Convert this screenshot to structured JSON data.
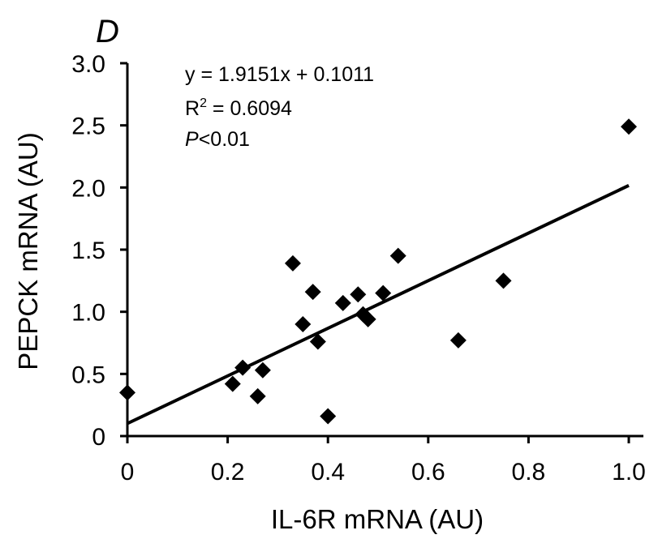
{
  "chart_data": {
    "type": "scatter",
    "panel_label": "D",
    "xlabel": "IL-6R mRNA (AU)",
    "ylabel": "PEPCK mRNA (AU)",
    "xlim": [
      0,
      1.0
    ],
    "ylim": [
      0,
      3.0
    ],
    "x_ticks": [
      0,
      0.2,
      0.4,
      0.6,
      0.8,
      1.0
    ],
    "x_tick_labels": [
      "0",
      "0.2",
      "0.4",
      "0.6",
      "0.8",
      "1.0"
    ],
    "y_ticks": [
      0,
      0.5,
      1.0,
      1.5,
      2.0,
      2.5,
      3.0
    ],
    "y_tick_labels": [
      "0",
      "0.5",
      "1.0",
      "1.5",
      "2.0",
      "2.5",
      "3.0"
    ],
    "grid": false,
    "marker": "diamond",
    "marker_color": "#000000",
    "points": [
      {
        "x": 0.0,
        "y": 0.35
      },
      {
        "x": 0.21,
        "y": 0.42
      },
      {
        "x": 0.23,
        "y": 0.55
      },
      {
        "x": 0.26,
        "y": 0.32
      },
      {
        "x": 0.27,
        "y": 0.53
      },
      {
        "x": 0.33,
        "y": 1.39
      },
      {
        "x": 0.35,
        "y": 0.9
      },
      {
        "x": 0.37,
        "y": 1.16
      },
      {
        "x": 0.38,
        "y": 0.76
      },
      {
        "x": 0.4,
        "y": 0.16
      },
      {
        "x": 0.43,
        "y": 1.07
      },
      {
        "x": 0.46,
        "y": 1.14
      },
      {
        "x": 0.47,
        "y": 0.98
      },
      {
        "x": 0.48,
        "y": 0.94
      },
      {
        "x": 0.51,
        "y": 1.15
      },
      {
        "x": 0.54,
        "y": 1.45
      },
      {
        "x": 0.66,
        "y": 0.77
      },
      {
        "x": 0.75,
        "y": 1.25
      },
      {
        "x": 1.0,
        "y": 2.49
      }
    ],
    "trendline": {
      "slope": 1.9151,
      "intercept": 0.1011,
      "x_range": [
        0,
        1.0
      ]
    },
    "annotations": {
      "equation": "y = 1.9151x + 0.1011",
      "r2_prefix": "R",
      "r2_sup": "2",
      "r2_value": " = 0.6094",
      "p_symbol": "P",
      "p_value": "<0.01"
    }
  }
}
